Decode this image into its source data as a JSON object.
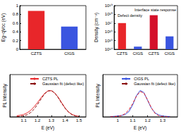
{
  "chart_data": [
    {
      "type": "bar",
      "categories": [
        "CZTS",
        "CIGS"
      ],
      "values": [
        0.88,
        0.52
      ],
      "colors": [
        "#e8262a",
        "#3a55e0"
      ],
      "ylabel": "Eg−qVoc (eV)",
      "ylim": [
        0,
        1
      ],
      "yticks": [
        0,
        0.2,
        0.4,
        0.6,
        0.8,
        1
      ]
    },
    {
      "type": "bar",
      "log": "y",
      "categories": [
        "CZTS",
        "CIGS",
        "CZTS",
        "CIGS"
      ],
      "values": [
        1e+17,
        200000000000000.0,
        8e+17,
        3000000000000000.0
      ],
      "colors": [
        "#e8262a",
        "#3a55e0",
        "#d4102a",
        "#3a55e0"
      ],
      "ylabel": "Density (cm⁻³)",
      "ylim": [
        100000000000000.0,
        1e+19
      ],
      "yticks": [
        {
          "value": 100000000000000.0,
          "label": "10¹⁴"
        },
        {
          "value": 1000000000000000.0,
          "label": "10¹⁵"
        },
        {
          "value": 1e+16,
          "label": "10¹⁶"
        },
        {
          "value": 1e+17,
          "label": "10¹⁷"
        },
        {
          "value": 1e+18,
          "label": "10¹⁸"
        },
        {
          "value": 1e+19,
          "label": "10¹⁹"
        }
      ],
      "annotations": [
        "Defect density",
        "Interface state response"
      ]
    },
    {
      "type": "line",
      "xlabel": "E (eV)",
      "ylabel": "PL Intensity",
      "x": [
        1.05,
        1.075,
        1.1,
        1.125,
        1.15,
        1.175,
        1.2,
        1.225,
        1.25,
        1.275,
        1.3,
        1.325,
        1.35,
        1.375,
        1.4,
        1.425,
        1.45,
        1.475,
        1.5
      ],
      "series": [
        {
          "name": "CZTS PL",
          "color": "#e8262a",
          "line_style": "solid",
          "values": [
            0.04,
            0.06,
            0.09,
            0.15,
            0.24,
            0.38,
            0.54,
            0.72,
            0.88,
            0.98,
            0.99,
            0.9,
            0.74,
            0.53,
            0.33,
            0.18,
            0.09,
            0.04,
            0.02
          ]
        },
        {
          "name": "Gaussian fit (defect like)",
          "color": "#8b1010",
          "line_style": "dashed",
          "values": [
            0.01,
            0.02,
            0.04,
            0.08,
            0.16,
            0.29,
            0.47,
            0.67,
            0.86,
            0.98,
            1.0,
            0.9,
            0.72,
            0.51,
            0.32,
            0.17,
            0.08,
            0.03,
            0.01
          ]
        }
      ],
      "xlim": [
        1.0,
        1.55
      ],
      "xticks": [
        1.1,
        1.2,
        1.3,
        1.4,
        1.5
      ],
      "ylim": [
        0,
        1.6
      ],
      "tick_labels": "x",
      "legend": "upper right"
    },
    {
      "type": "line",
      "xlabel": "E (eV)",
      "ylabel": "PL Intensity",
      "x": [
        0.95,
        0.975,
        1.0,
        1.025,
        1.05,
        1.075,
        1.1,
        1.125,
        1.15,
        1.175,
        1.2,
        1.225,
        1.25,
        1.275,
        1.3,
        1.325,
        1.35
      ],
      "series": [
        {
          "name": "CIGS PL",
          "color": "#3a55e0",
          "line_style": "solid",
          "values": [
            0.01,
            0.02,
            0.03,
            0.05,
            0.09,
            0.2,
            0.45,
            0.8,
            1.0,
            0.92,
            0.62,
            0.33,
            0.15,
            0.07,
            0.03,
            0.02,
            0.01
          ]
        },
        {
          "name": "Gaussian fit (defect like)",
          "color": "#e8262a",
          "line_style": "dashed",
          "values": [
            0,
            0.01,
            0.02,
            0.05,
            0.12,
            0.27,
            0.5,
            0.78,
            0.96,
            0.9,
            0.64,
            0.34,
            0.13,
            0.04,
            0.01,
            0,
            0
          ]
        }
      ],
      "xlim": [
        0.9,
        1.4
      ],
      "xticks": [
        1.0,
        1.1,
        1.2,
        1.3
      ],
      "ylim": [
        0,
        1.6
      ],
      "tick_labels": "x",
      "legend": "upper right"
    }
  ]
}
